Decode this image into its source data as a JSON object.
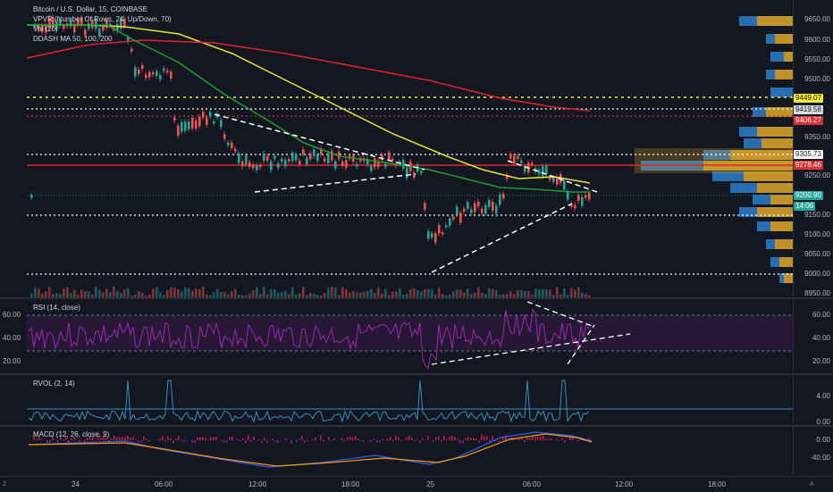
{
  "chart_title": "Bitcoin / U.S. Dollar, 15, COINBASE",
  "indicators": {
    "vpvr": "VPVR (Number Of Rows, 24, Up/Down, 70)",
    "vol": "Vol (20)",
    "ma": "DDASH MA 50, 100, 200"
  },
  "rsi_label": "RSI (14, close)",
  "rvol_label": "RVOL (2, 14)",
  "macd_label": "MACD (12, 26, close, 9)",
  "price_axis": [
    "9650.00",
    "9600.00",
    "9550.00",
    "9500.00",
    "9350.00",
    "9250.00",
    "9150.00",
    "9100.00",
    "9050.00",
    "9000.00",
    "8950.00"
  ],
  "price_tags": {
    "p9449": "9449.07",
    "p9419": "9419.58",
    "p9406": "9406.27",
    "p9305": "9305.73",
    "p9278": "9278.46",
    "p9200": "9200.90",
    "countdown": "14:06"
  },
  "rsi_axis": [
    "60.00",
    "40.00",
    "20.00"
  ],
  "rvol_axis": [
    "4.00",
    "0.00"
  ],
  "macd_axis": [
    "0.00",
    "-40.00"
  ],
  "time_axis": [
    "24",
    "06:00",
    "12:00",
    "18:00",
    "25",
    "06:00",
    "12:00",
    "18:00"
  ],
  "corner": {
    "left": "Z",
    "right": "A"
  },
  "colors": {
    "background": "#131722",
    "up_candle": "#26a69a",
    "down_candle": "#ef5350",
    "ma50": "#1b9e2f",
    "ma100": "#e8e337",
    "ma200": "#e0242b",
    "rsi": "#9c27b0",
    "vpvr_up": "#2b7fc9",
    "vpvr_down": "#e1a82c"
  }
}
